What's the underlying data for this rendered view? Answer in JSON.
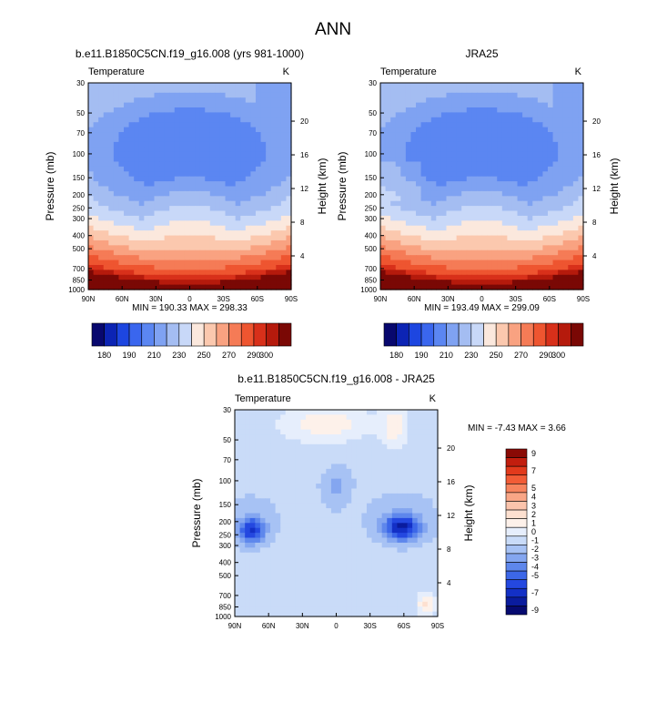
{
  "figure_title": "ANN",
  "chart_data": [
    {
      "type": "heatmap",
      "title": "b.e11.B1850C5CN.f19_g16.008 (yrs 981-1000)",
      "left_string": "Temperature",
      "right_string": "K",
      "ylabel": "Pressure (mb)",
      "ylabel_right": "Height (km)",
      "pressure_ticks": [
        30,
        50,
        70,
        100,
        150,
        200,
        250,
        300,
        400,
        500,
        700,
        850,
        1000
      ],
      "height_ticks": [
        20,
        16,
        12,
        8,
        4
      ],
      "x_tick_labels": [
        "90N",
        "60N",
        "30N",
        "0",
        "30S",
        "60S",
        "90S"
      ],
      "xlim": [
        90,
        -90
      ],
      "ylim": [
        1000,
        30
      ],
      "min_max_text": "MIN = 190.33  MAX = 298.33",
      "colorbar": {
        "orientation": "horizontal",
        "levels": [
          180,
          185,
          190,
          200,
          210,
          220,
          230,
          240,
          250,
          260,
          270,
          280,
          290,
          295,
          300
        ],
        "labels": [
          "180",
          "190",
          "210",
          "230",
          "250",
          "270",
          "290",
          "300"
        ],
        "colors": [
          "#08086e",
          "#0c24b4",
          "#1d46e0",
          "#3a66ee",
          "#5b86f2",
          "#7fa2f2",
          "#a4bdf2",
          "#c8d8f8",
          "#fbe8dd",
          "#fbc8ae",
          "#f9a281",
          "#f57b56",
          "#ee5530",
          "#d8301a",
          "#b51a0c",
          "#7a0805"
        ]
      }
    },
    {
      "type": "heatmap",
      "title": "JRA25",
      "left_string": "Temperature",
      "right_string": "K",
      "ylabel": "Pressure (mb)",
      "ylabel_right": "Height (km)",
      "pressure_ticks": [
        30,
        50,
        70,
        100,
        150,
        200,
        250,
        300,
        400,
        500,
        700,
        850,
        1000
      ],
      "height_ticks": [
        20,
        16,
        12,
        8,
        4
      ],
      "x_tick_labels": [
        "90N",
        "60N",
        "30N",
        "0",
        "30S",
        "60S",
        "90S"
      ],
      "xlim": [
        90,
        -90
      ],
      "ylim": [
        1000,
        30
      ],
      "min_max_text": "MIN = 193.49  MAX = 299.09",
      "colorbar": {
        "orientation": "horizontal",
        "levels": [
          180,
          185,
          190,
          200,
          210,
          220,
          230,
          240,
          250,
          260,
          270,
          280,
          290,
          295,
          300
        ],
        "labels": [
          "180",
          "190",
          "210",
          "230",
          "250",
          "270",
          "290",
          "300"
        ],
        "colors": [
          "#08086e",
          "#0c24b4",
          "#1d46e0",
          "#3a66ee",
          "#5b86f2",
          "#7fa2f2",
          "#a4bdf2",
          "#c8d8f8",
          "#fbe8dd",
          "#fbc8ae",
          "#f9a281",
          "#f57b56",
          "#ee5530",
          "#d8301a",
          "#b51a0c",
          "#7a0805"
        ]
      }
    },
    {
      "type": "heatmap",
      "title": "b.e11.B1850C5CN.f19_g16.008 - JRA25",
      "left_string": "Temperature",
      "right_string": "K",
      "ylabel": "Pressure (mb)",
      "ylabel_right": "Height (km)",
      "pressure_ticks": [
        30,
        50,
        70,
        100,
        150,
        200,
        250,
        300,
        400,
        500,
        700,
        850,
        1000
      ],
      "height_ticks": [
        20,
        16,
        12,
        8,
        4
      ],
      "x_tick_labels": [
        "90N",
        "60N",
        "30N",
        "0",
        "30S",
        "60S",
        "90S"
      ],
      "xlim": [
        90,
        -90
      ],
      "ylim": [
        1000,
        30
      ],
      "min_max_text": "MIN =  -7.43  MAX =   3.66",
      "colorbar": {
        "orientation": "vertical",
        "levels": [
          9,
          8,
          7,
          6,
          5,
          4,
          3,
          2,
          1,
          0,
          -1,
          -2,
          -3,
          -4,
          -5,
          -6,
          -7,
          -8,
          -9
        ],
        "labels": [
          "9",
          "7",
          "5",
          "4",
          "3",
          "2",
          "1",
          "0",
          "-1",
          "-2",
          "-3",
          "-4",
          "-5",
          "-7",
          "-9"
        ],
        "colors": [
          "#8a0a05",
          "#c21e0e",
          "#e23a1c",
          "#f25c36",
          "#f7845e",
          "#f9a686",
          "#fbc4ac",
          "#fde0d0",
          "#fdf1ea",
          "#e6eefc",
          "#c9dbf8",
          "#a7c2f4",
          "#84a6f0",
          "#5e87ec",
          "#3c67e8",
          "#2448e0",
          "#1330c6",
          "#0a1c9e",
          "#060a70"
        ]
      }
    }
  ]
}
